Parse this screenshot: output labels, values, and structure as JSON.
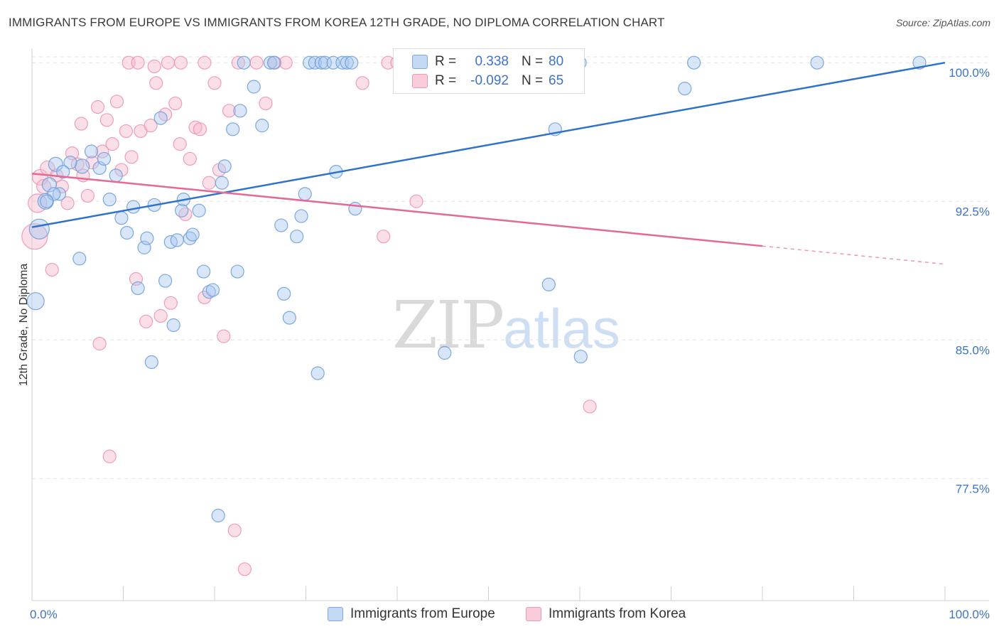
{
  "title": "IMMIGRANTS FROM EUROPE VS IMMIGRANTS FROM KOREA 12TH GRADE, NO DIPLOMA CORRELATION CHART",
  "source": "Source: ZipAtlas.com",
  "watermark": {
    "zip": "ZIP",
    "atlas": "atlas"
  },
  "legend": {
    "europe": {
      "r_label": "R =",
      "r_value": "0.338",
      "n_label": "N =",
      "n_value": "80"
    },
    "korea": {
      "r_label": "R =",
      "r_value": "-0.092",
      "n_label": "N =",
      "n_value": "65"
    }
  },
  "bottom_legend": {
    "europe": "Immigrants from Europe",
    "korea": "Immigrants from Korea"
  },
  "colors": {
    "europe_fill": "#a9c8ef",
    "europe_stroke": "#6f9fdc",
    "europe_line": "#2f72c9",
    "korea_fill": "#f6b9cc",
    "korea_stroke": "#ee93b1",
    "korea_line": "#e46a95",
    "tick_label": "#3f73c8",
    "grid": "#e4e4e4"
  },
  "chart_data": {
    "type": "scatter",
    "title": "IMMIGRANTS FROM EUROPE VS IMMIGRANTS FROM KOREA 12TH GRADE, NO DIPLOMA CORRELATION CHART",
    "xlabel": "",
    "ylabel": "12th Grade, No Diploma",
    "x_tick_labels": [
      "0.0%",
      "100.0%"
    ],
    "y_tick_labels": [
      "100.0%",
      "92.5%",
      "85.0%",
      "77.5%"
    ],
    "y_ticks": [
      100.0,
      92.5,
      85.0,
      77.5
    ],
    "xlim": [
      0,
      100
    ],
    "ylim": [
      70.9,
      100.7
    ],
    "grid": true,
    "legend_placement": "top-center",
    "series": [
      {
        "name": "Immigrants from Europe",
        "trend": {
          "x": [
            0,
            100
          ],
          "y": [
            91.1,
            100.0
          ],
          "dashed_from": null
        },
        "points": [
          [
            0.8,
            91.0,
            14
          ],
          [
            0.4,
            87.1,
            12
          ],
          [
            1.5,
            92.5,
            11
          ],
          [
            2.6,
            94.5,
            10
          ],
          [
            1.9,
            93.4,
            10
          ],
          [
            3.0,
            92.9,
            9
          ],
          [
            5.5,
            94.4,
            10
          ],
          [
            6.5,
            95.2,
            9
          ],
          [
            7.4,
            94.3,
            9
          ],
          [
            7.9,
            94.8,
            9
          ],
          [
            8.5,
            92.6,
            9
          ],
          [
            9.2,
            93.9,
            9
          ],
          [
            4.2,
            94.6,
            9
          ],
          [
            5.2,
            89.4,
            9
          ],
          [
            9.8,
            91.6,
            9
          ],
          [
            10.4,
            90.8,
            9
          ],
          [
            11.1,
            92.2,
            9
          ],
          [
            11.6,
            87.8,
            9
          ],
          [
            12.3,
            90.0,
            9
          ],
          [
            12.6,
            90.5,
            9
          ],
          [
            13.1,
            83.8,
            9
          ],
          [
            13.4,
            92.3,
            9
          ],
          [
            14.1,
            97.0,
            9
          ],
          [
            14.6,
            88.2,
            9
          ],
          [
            15.2,
            90.3,
            9
          ],
          [
            15.5,
            85.8,
            9
          ],
          [
            15.9,
            90.4,
            9
          ],
          [
            16.4,
            92.0,
            9
          ],
          [
            16.6,
            92.6,
            9
          ],
          [
            17.3,
            90.5,
            9
          ],
          [
            17.6,
            90.7,
            9
          ],
          [
            18.3,
            92.0,
            9
          ],
          [
            18.8,
            88.7,
            9
          ],
          [
            19.4,
            87.6,
            9
          ],
          [
            19.8,
            87.7,
            9
          ],
          [
            20.4,
            75.5,
            9
          ],
          [
            20.8,
            93.5,
            9
          ],
          [
            21.1,
            94.4,
            9
          ],
          [
            22.0,
            96.4,
            9
          ],
          [
            22.5,
            88.7,
            9
          ],
          [
            22.8,
            97.4,
            9
          ],
          [
            23.2,
            100.0,
            9
          ],
          [
            24.3,
            98.7,
            9
          ],
          [
            25.2,
            96.6,
            9
          ],
          [
            26.1,
            100.0,
            9
          ],
          [
            26.5,
            100.0,
            9
          ],
          [
            27.3,
            91.2,
            9
          ],
          [
            27.6,
            87.5,
            9
          ],
          [
            28.2,
            86.2,
            9
          ],
          [
            29.0,
            90.6,
            9
          ],
          [
            29.5,
            91.7,
            9
          ],
          [
            29.9,
            92.9,
            9
          ],
          [
            30.4,
            100.0,
            9
          ],
          [
            31.0,
            100.0,
            9
          ],
          [
            31.7,
            100.0,
            9
          ],
          [
            31.3,
            83.2,
            9
          ],
          [
            32.1,
            100.0,
            9
          ],
          [
            33.0,
            100.0,
            9
          ],
          [
            33.3,
            94.1,
            9
          ],
          [
            34.0,
            100.0,
            9
          ],
          [
            34.5,
            100.0,
            9
          ],
          [
            35.0,
            100.0,
            9
          ],
          [
            35.4,
            92.1,
            9
          ],
          [
            42.1,
            100.0,
            9
          ],
          [
            43.0,
            100.0,
            9
          ],
          [
            44.3,
            99.8,
            9
          ],
          [
            45.2,
            84.3,
            9
          ],
          [
            47.0,
            100.0,
            9
          ],
          [
            55.6,
            100.0,
            9
          ],
          [
            56.6,
            88.0,
            9
          ],
          [
            57.3,
            96.4,
            9
          ],
          [
            60.0,
            100.0,
            9
          ],
          [
            60.1,
            84.1,
            9
          ],
          [
            72.5,
            100.0,
            9
          ],
          [
            71.5,
            98.6,
            9
          ],
          [
            86.0,
            100.0,
            9
          ],
          [
            97.2,
            100.0,
            9
          ],
          [
            2.4,
            92.9,
            9
          ],
          [
            3.4,
            94.1,
            9
          ],
          [
            1.6,
            92.5,
            9
          ]
        ]
      },
      {
        "name": "Immigrants from Korea",
        "trend": {
          "x": [
            0,
            100
          ],
          "y": [
            94.0,
            89.1
          ],
          "dashed_from": 80
        },
        "points": [
          [
            0.3,
            90.6,
            18
          ],
          [
            0.6,
            92.4,
            13
          ],
          [
            0.9,
            93.8,
            11
          ],
          [
            1.3,
            93.3,
            10
          ],
          [
            1.7,
            94.3,
            10
          ],
          [
            2.2,
            88.8,
            9
          ],
          [
            2.7,
            93.9,
            9
          ],
          [
            3.3,
            93.3,
            9
          ],
          [
            3.9,
            92.4,
            9
          ],
          [
            4.4,
            95.1,
            9
          ],
          [
            5.0,
            94.5,
            9
          ],
          [
            5.6,
            93.9,
            9
          ],
          [
            6.1,
            92.8,
            9
          ],
          [
            6.6,
            94.6,
            9
          ],
          [
            7.2,
            97.6,
            9
          ],
          [
            7.7,
            95.2,
            9
          ],
          [
            8.2,
            96.9,
            9
          ],
          [
            8.8,
            95.6,
            9
          ],
          [
            9.3,
            97.9,
            9
          ],
          [
            9.8,
            94.2,
            9
          ],
          [
            10.3,
            96.3,
            9
          ],
          [
            10.9,
            94.9,
            9
          ],
          [
            11.4,
            88.3,
            9
          ],
          [
            11.9,
            96.3,
            9
          ],
          [
            12.5,
            86.0,
            9
          ],
          [
            13.0,
            96.6,
            9
          ],
          [
            13.6,
            98.9,
            9
          ],
          [
            14.1,
            86.3,
            9
          ],
          [
            14.6,
            97.2,
            9
          ],
          [
            15.2,
            87.0,
            9
          ],
          [
            15.7,
            97.8,
            9
          ],
          [
            16.2,
            95.6,
            9
          ],
          [
            16.8,
            91.8,
            9
          ],
          [
            17.3,
            94.8,
            9
          ],
          [
            17.9,
            96.5,
            9
          ],
          [
            18.4,
            96.4,
            9
          ],
          [
            18.9,
            87.3,
            9
          ],
          [
            19.4,
            93.5,
            9
          ],
          [
            20.0,
            98.9,
            9
          ],
          [
            20.5,
            94.2,
            9
          ],
          [
            21.0,
            85.2,
            9
          ],
          [
            21.6,
            97.4,
            9
          ],
          [
            22.2,
            74.7,
            9
          ],
          [
            22.6,
            100.0,
            9
          ],
          [
            23.3,
            72.6,
            9
          ],
          [
            24.6,
            100.0,
            9
          ],
          [
            25.6,
            97.8,
            9
          ],
          [
            26.6,
            100.0,
            9
          ],
          [
            27.8,
            100.0,
            9
          ],
          [
            7.4,
            84.8,
            9
          ],
          [
            8.5,
            78.7,
            9
          ],
          [
            36.2,
            98.9,
            9
          ],
          [
            38.5,
            90.6,
            9
          ],
          [
            39.0,
            100.0,
            9
          ],
          [
            40.0,
            100.0,
            9
          ],
          [
            41.5,
            100.0,
            9
          ],
          [
            42.1,
            92.5,
            9
          ],
          [
            10.6,
            100.0,
            9
          ],
          [
            11.6,
            100.0,
            9
          ],
          [
            13.4,
            99.8,
            9
          ],
          [
            14.9,
            100.0,
            9
          ],
          [
            16.3,
            100.0,
            9
          ],
          [
            18.9,
            100.0,
            9
          ],
          [
            61.1,
            81.4,
            9
          ],
          [
            5.4,
            96.7,
            9
          ]
        ]
      }
    ]
  }
}
